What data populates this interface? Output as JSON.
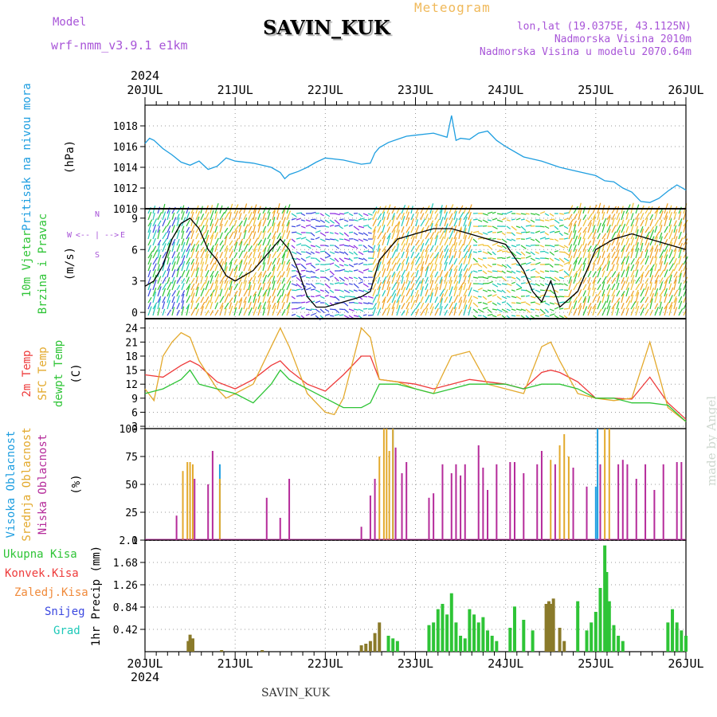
{
  "header": {
    "model_label": "Model",
    "model_name": "wrf-nmm_v3.9.1 e1km",
    "station": "SAVIN_KUK",
    "meteogram_label": "Meteogram",
    "lonlat": "lon,lat (19.0375E, 43.1125N)",
    "elevation": "Nadmorska Visina 2010m",
    "elevation_model": "Nadmorska Visina u modelu 2070.64m",
    "footer_station": "SAVIN_KUK",
    "credit": "made by Angel"
  },
  "chart_data": [
    {
      "type": "line",
      "panel": "pressure",
      "title_lines": [
        "Pritisak na nivou mora",
        "(hPa)"
      ],
      "ylim": [
        1010,
        1020
      ],
      "yticks": [
        1010,
        1012,
        1014,
        1016,
        1018
      ],
      "x_day_labels": [
        "20JUL",
        "21JUL",
        "22JUL",
        "23JUL",
        "24JUL",
        "25JUL",
        "26JUL"
      ],
      "year_label": "2024",
      "grid": true,
      "color": "#1e9ee0",
      "series": [
        {
          "x": [
            0,
            0.05,
            0.1,
            0.2,
            0.3,
            0.4,
            0.5,
            0.6,
            0.7,
            0.8,
            0.9,
            1.0,
            1.2,
            1.4,
            1.5,
            1.55,
            1.6,
            1.7,
            1.8,
            1.9,
            2.0,
            2.2,
            2.4,
            2.5,
            2.55,
            2.6,
            2.7,
            2.8,
            2.9,
            3.0,
            3.2,
            3.35,
            3.4,
            3.45,
            3.5,
            3.6,
            3.7,
            3.8,
            3.9,
            4.0,
            4.2,
            4.4,
            4.6,
            4.8,
            5.0,
            5.1,
            5.2,
            5.3,
            5.4,
            5.5,
            5.6,
            5.7,
            5.8,
            5.9,
            6.0
          ],
          "y": [
            1016.3,
            1016.8,
            1016.6,
            1015.8,
            1015.2,
            1014.5,
            1014.2,
            1014.6,
            1013.8,
            1014.1,
            1014.9,
            1014.6,
            1014.4,
            1014.0,
            1013.5,
            1012.9,
            1013.3,
            1013.6,
            1014.0,
            1014.5,
            1014.9,
            1014.7,
            1014.3,
            1014.4,
            1015.4,
            1015.9,
            1016.4,
            1016.7,
            1017.0,
            1017.1,
            1017.3,
            1016.9,
            1019.0,
            1016.6,
            1016.8,
            1016.7,
            1017.3,
            1017.5,
            1016.6,
            1016.0,
            1015.0,
            1014.6,
            1014.0,
            1013.6,
            1013.2,
            1012.7,
            1012.6,
            1012.0,
            1011.6,
            1010.7,
            1010.6,
            1011.0,
            1011.7,
            1012.3,
            1011.8
          ]
        }
      ]
    },
    {
      "type": "line",
      "panel": "wind",
      "title_lines": [
        "10m Vjetar",
        "Brzina i Pravac",
        "(m/s)"
      ],
      "ylim": [
        -0.6,
        9.9
      ],
      "yticks": [
        0,
        3,
        6,
        9
      ],
      "compass_labels": [
        "N",
        "W",
        "E",
        "S"
      ],
      "compass_arrows": "<-- | -->",
      "color": "#000000",
      "series": [
        {
          "x": [
            0,
            0.1,
            0.2,
            0.3,
            0.4,
            0.5,
            0.6,
            0.7,
            0.8,
            0.9,
            1.0,
            1.2,
            1.4,
            1.5,
            1.6,
            1.7,
            1.8,
            1.9,
            2.0,
            2.2,
            2.4,
            2.5,
            2.6,
            2.8,
            3.0,
            3.2,
            3.4,
            3.6,
            3.8,
            4.0,
            4.2,
            4.3,
            4.4,
            4.5,
            4.6,
            4.8,
            5.0,
            5.2,
            5.4,
            5.6,
            5.8,
            6.0
          ],
          "y": [
            2.5,
            3,
            4.5,
            7,
            8.5,
            9,
            8,
            6,
            5,
            3.5,
            3,
            4,
            6,
            7,
            6,
            4,
            1.5,
            0.5,
            0.5,
            1,
            1.5,
            2,
            5,
            7,
            7.5,
            8,
            8,
            7.5,
            7,
            6.5,
            4,
            2,
            1,
            3,
            0.5,
            2,
            6,
            7,
            7.5,
            7,
            6.5,
            6
          ]
        }
      ]
    },
    {
      "type": "line",
      "panel": "temperature",
      "title_lines": [
        "2m Temp",
        "SFC Temp",
        "dewpt Temp",
        "(C)"
      ],
      "ylim": [
        2.5,
        26
      ],
      "yticks": [
        3,
        6,
        9,
        12,
        15,
        18,
        21,
        24
      ],
      "series": [
        {
          "name": "2m Temp",
          "color": "#ee3b3b",
          "x": [
            0,
            0.2,
            0.4,
            0.5,
            0.6,
            0.8,
            1.0,
            1.2,
            1.4,
            1.5,
            1.6,
            1.8,
            2.0,
            2.2,
            2.4,
            2.5,
            2.6,
            2.8,
            3.0,
            3.2,
            3.4,
            3.6,
            3.8,
            4.0,
            4.2,
            4.4,
            4.5,
            4.6,
            4.8,
            5.0,
            5.2,
            5.4,
            5.6,
            5.8,
            6.0
          ],
          "y": [
            14,
            13.5,
            16,
            17,
            16,
            12.5,
            11,
            13,
            16,
            17,
            15,
            12,
            10.5,
            14,
            18,
            18,
            13,
            12.5,
            12,
            11,
            12,
            13,
            12.5,
            12,
            11,
            14.5,
            15,
            14.5,
            12.5,
            9,
            9,
            8.8,
            13.5,
            8,
            4.5
          ]
        },
        {
          "name": "SFC Temp",
          "color": "#e3a92c",
          "x": [
            0,
            0.1,
            0.2,
            0.3,
            0.4,
            0.5,
            0.6,
            0.8,
            0.9,
            1.0,
            1.2,
            1.4,
            1.5,
            1.6,
            1.8,
            2.0,
            2.1,
            2.2,
            2.4,
            2.5,
            2.6,
            2.8,
            3.0,
            3.2,
            3.4,
            3.6,
            3.8,
            4.0,
            4.2,
            4.4,
            4.5,
            4.6,
            4.8,
            5.0,
            5.2,
            5.4,
            5.6,
            5.8,
            6.0
          ],
          "y": [
            11,
            8.5,
            18,
            21,
            23,
            22,
            17,
            11,
            9,
            10,
            12,
            20,
            24,
            20,
            10,
            6,
            5.5,
            9,
            24,
            22,
            13,
            12.5,
            11,
            10,
            18,
            19,
            12,
            11,
            10,
            20,
            21,
            17,
            10,
            9,
            8.5,
            9,
            21,
            7,
            4
          ]
        },
        {
          "name": "dewpt Temp",
          "color": "#2ec436",
          "x": [
            0,
            0.2,
            0.3,
            0.4,
            0.5,
            0.6,
            0.8,
            1.0,
            1.2,
            1.4,
            1.5,
            1.6,
            1.8,
            2.0,
            2.2,
            2.4,
            2.5,
            2.6,
            2.8,
            3.0,
            3.2,
            3.4,
            3.6,
            3.8,
            4.0,
            4.2,
            4.4,
            4.6,
            4.8,
            5.0,
            5.2,
            5.4,
            5.6,
            5.8,
            6.0
          ],
          "y": [
            10,
            11,
            12,
            13,
            15,
            12,
            11,
            10,
            8,
            12,
            15,
            13,
            11,
            9,
            7,
            7,
            8,
            12,
            12,
            11,
            10,
            11,
            12,
            12,
            12,
            11,
            12,
            12,
            11,
            9,
            9,
            8,
            8,
            7.5,
            4
          ]
        }
      ]
    },
    {
      "type": "bar",
      "panel": "cloud_cover",
      "title_lines": [
        "Visoka Oblacnost",
        "Srednja Oblacnost",
        "Niska Oblacnost",
        "(%)"
      ],
      "ylim": [
        0,
        100
      ],
      "yticks": [
        0,
        25,
        50,
        75,
        100
      ],
      "series": [
        {
          "name": "Visoka Oblacnost",
          "color": "#1e9ee0",
          "x": [
            0.83,
            2.75,
            5.0,
            5.02
          ],
          "y": [
            68,
            100,
            48,
            100
          ]
        },
        {
          "name": "Srednja Oblacnost",
          "color": "#e3a92c",
          "x": [
            0.42,
            0.47,
            0.5,
            0.53,
            0.83,
            2.6,
            2.65,
            2.68,
            2.71,
            2.75,
            4.5,
            4.6,
            4.65,
            4.7,
            5.1,
            5.15
          ],
          "y": [
            62,
            70,
            70,
            68,
            55,
            75,
            100,
            100,
            80,
            100,
            72,
            85,
            95,
            75,
            100,
            100
          ]
        },
        {
          "name": "Niska Oblacnost",
          "color": "#b52b9a",
          "x": [
            0.35,
            0.55,
            0.7,
            0.75,
            1.35,
            1.5,
            1.6,
            2.4,
            2.5,
            2.55,
            2.78,
            2.85,
            2.9,
            3.15,
            3.2,
            3.3,
            3.4,
            3.45,
            3.5,
            3.55,
            3.7,
            3.75,
            3.8,
            3.9,
            4.05,
            4.1,
            4.2,
            4.35,
            4.4,
            4.55,
            4.75,
            4.9,
            5.05,
            5.25,
            5.3,
            5.35,
            5.45,
            5.55,
            5.65,
            5.75,
            5.9,
            5.95
          ],
          "y": [
            22,
            55,
            50,
            80,
            38,
            20,
            55,
            12,
            40,
            55,
            83,
            60,
            70,
            38,
            42,
            68,
            60,
            68,
            58,
            68,
            85,
            65,
            45,
            68,
            70,
            70,
            60,
            68,
            80,
            68,
            65,
            48,
            68,
            68,
            72,
            68,
            55,
            68,
            45,
            68,
            70,
            70
          ]
        }
      ]
    },
    {
      "type": "bar",
      "panel": "precipitation",
      "title_lines": [
        "1hr Precip (mm)"
      ],
      "legend": [
        "Ukupna Kisa",
        "Konvek.Kisa",
        "Zaledj.Kisa",
        "Snijeg",
        "Grad"
      ],
      "legend_colors": [
        "#2ec436",
        "#ee3b3b",
        "#f08a3a",
        "#3b48e0",
        "#1ec8b8"
      ],
      "ylim": [
        0,
        2.1
      ],
      "yticks": [
        0.42,
        0.84,
        1.26,
        1.68,
        2.1
      ],
      "series": [
        {
          "name": "Ukupna Kisa",
          "color": "#2ec436",
          "x": [
            2.7,
            2.75,
            2.8,
            3.15,
            3.2,
            3.25,
            3.3,
            3.35,
            3.4,
            3.45,
            3.5,
            3.55,
            3.6,
            3.65,
            3.7,
            3.75,
            3.8,
            3.85,
            3.9,
            4.05,
            4.1,
            4.2,
            4.3,
            4.8,
            4.9,
            4.95,
            5.0,
            5.05,
            5.1,
            5.12,
            5.15,
            5.2,
            5.25,
            5.3,
            5.8,
            5.85,
            5.9,
            5.95,
            6.0
          ],
          "y": [
            0.3,
            0.25,
            0.2,
            0.5,
            0.55,
            0.8,
            0.9,
            0.7,
            1.1,
            0.55,
            0.3,
            0.25,
            0.8,
            0.7,
            0.55,
            0.65,
            0.4,
            0.3,
            0.2,
            0.45,
            0.85,
            0.6,
            0.4,
            0.95,
            0.4,
            0.55,
            0.75,
            1.2,
            2.0,
            1.5,
            0.95,
            0.5,
            0.3,
            0.2,
            0.55,
            0.8,
            0.55,
            0.4,
            0.3
          ]
        },
        {
          "name": "Konvek.Kisa",
          "color": "#8a7a2a",
          "x": [
            0.48,
            0.5,
            0.53,
            0.85,
            1.3,
            2.4,
            2.45,
            2.5,
            2.55,
            2.6,
            4.45,
            4.48,
            4.5,
            4.53,
            4.6,
            4.65
          ],
          "y": [
            0.2,
            0.32,
            0.25,
            0.03,
            0.03,
            0.12,
            0.15,
            0.2,
            0.35,
            0.55,
            0.9,
            0.95,
            0.9,
            1.0,
            0.45,
            0.2
          ]
        }
      ]
    }
  ]
}
